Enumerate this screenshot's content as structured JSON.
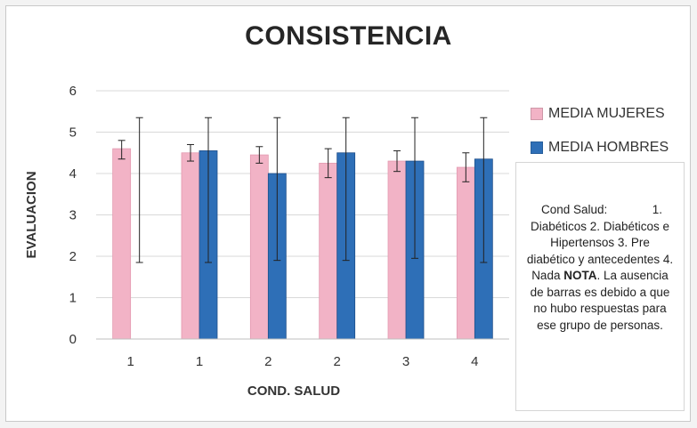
{
  "chart_data": {
    "type": "bar",
    "title": "CONSISTENCIA",
    "xlabel": "COND. SALUD",
    "ylabel": "EVALUACION",
    "ylim": [
      0,
      6
    ],
    "yticks": [
      "0",
      "1",
      "2",
      "3",
      "4",
      "5",
      "6"
    ],
    "categories": [
      "1",
      "1",
      "2",
      "2",
      "3",
      "4"
    ],
    "grid": true,
    "legend_position": "right",
    "series": [
      {
        "name": "MEDIA MUJERES",
        "color": "#f2b3c6",
        "values": [
          4.6,
          4.5,
          4.45,
          4.25,
          4.3,
          4.15
        ],
        "error_low": [
          4.35,
          4.3,
          4.25,
          3.9,
          4.05,
          3.8
        ],
        "error_high": [
          4.8,
          4.7,
          4.65,
          4.6,
          4.55,
          4.5
        ]
      },
      {
        "name": "MEDIA HOMBRES",
        "color": "#2e6fb7",
        "values": [
          null,
          4.55,
          4.0,
          4.5,
          4.3,
          4.35
        ],
        "error_low": [
          1.85,
          1.85,
          1.9,
          1.9,
          1.95,
          1.85
        ],
        "error_high": [
          5.35,
          5.35,
          5.35,
          5.35,
          5.35,
          5.35
        ]
      }
    ]
  },
  "note": {
    "line1": "Cond Salud:",
    "line1_num": "1.",
    "body": "Diabéticos  2. Diabéticos e Hipertensos  3. Pre diabético y antecedentes  4. Nada",
    "bold": "NOTA",
    "tail": ". La ausencia de barras es debido a que no hubo respuestas para ese grupo de personas."
  }
}
